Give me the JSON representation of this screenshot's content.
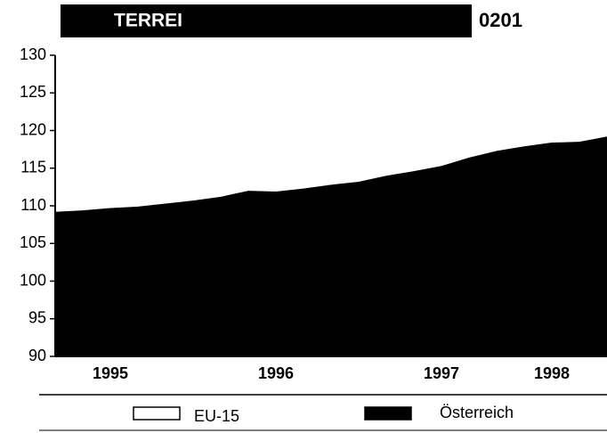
{
  "chart_data": {
    "type": "area",
    "title": "TERREI",
    "subtitle": "0201",
    "categories": [
      null,
      null,
      "1995",
      null,
      null,
      null,
      null,
      null,
      "1996",
      null,
      null,
      null,
      null,
      null,
      "1997",
      null,
      null,
      null,
      "1998",
      null,
      null
    ],
    "series": [
      {
        "name": "EU-15",
        "color": "#ffffff",
        "values": [
          109.0,
          109.2,
          109.5,
          109.7,
          110.1,
          110.5,
          111.0,
          111.8,
          111.7,
          112.1,
          112.6,
          113.0,
          114.3,
          114.8,
          115.1,
          116.2,
          117.1,
          117.7,
          118.2,
          118.3,
          119.0
        ]
      },
      {
        "name": "Österreich",
        "color": "#000000",
        "values": [
          109.2,
          109.4,
          109.7,
          109.9,
          110.3,
          110.7,
          111.2,
          112.0,
          111.9,
          112.3,
          112.8,
          113.2,
          114.0,
          114.6,
          115.3,
          116.4,
          117.3,
          117.9,
          118.4,
          118.5,
          119.2
        ]
      }
    ],
    "ylim": [
      90,
      130
    ],
    "yticks": [
      90,
      95,
      100,
      105,
      110,
      115,
      120,
      125,
      130
    ]
  }
}
